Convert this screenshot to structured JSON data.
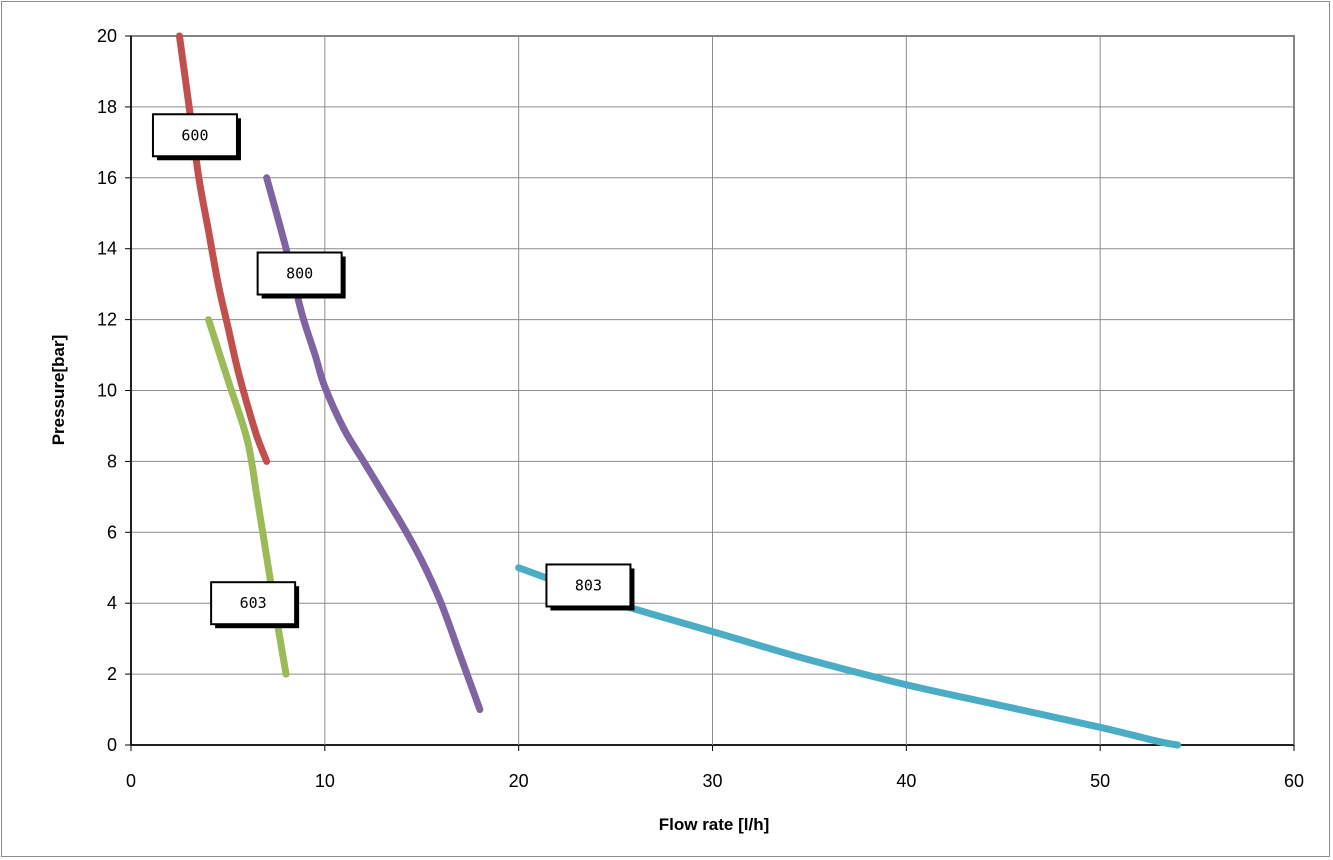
{
  "chart_data": {
    "type": "line",
    "title": "",
    "xlabel": "Flow rate [l/h]",
    "ylabel": "Pressure[bar]",
    "xlim": [
      0,
      60
    ],
    "ylim": [
      0,
      20
    ],
    "x_ticks": [
      0,
      10,
      20,
      30,
      40,
      50,
      60
    ],
    "y_ticks": [
      0,
      2,
      4,
      6,
      8,
      10,
      12,
      14,
      16,
      18,
      20
    ],
    "grid": true,
    "legend": "none",
    "series": [
      {
        "name": "600",
        "color": "#c0504d",
        "points": [
          [
            2.5,
            20
          ],
          [
            3,
            18
          ],
          [
            3.5,
            16
          ],
          [
            4,
            14.5
          ],
          [
            4.5,
            13
          ],
          [
            5,
            11.8
          ],
          [
            5.5,
            10.6
          ],
          [
            6,
            9.6
          ],
          [
            6.5,
            8.7
          ],
          [
            7,
            8
          ]
        ]
      },
      {
        "name": "800",
        "color": "#8064a2",
        "points": [
          [
            7,
            16
          ],
          [
            8,
            14
          ],
          [
            8.8,
            12.2
          ],
          [
            9.5,
            11
          ],
          [
            10,
            10.1
          ],
          [
            11,
            8.9
          ],
          [
            12,
            8
          ],
          [
            13,
            7.1
          ],
          [
            14,
            6.2
          ],
          [
            15,
            5.2
          ],
          [
            16,
            4
          ],
          [
            17,
            2.5
          ],
          [
            18,
            1
          ]
        ]
      },
      {
        "name": "603",
        "color": "#9bbb59",
        "points": [
          [
            4,
            12
          ],
          [
            5,
            10.3
          ],
          [
            6,
            8.6
          ],
          [
            6.5,
            7
          ],
          [
            7,
            5.3
          ],
          [
            7.5,
            3.6
          ],
          [
            8,
            2
          ]
        ]
      },
      {
        "name": "803",
        "color": "#4bacc6",
        "points": [
          [
            20,
            5
          ],
          [
            22,
            4.6
          ],
          [
            25,
            4
          ],
          [
            30,
            3.2
          ],
          [
            35,
            2.4
          ],
          [
            40,
            1.7
          ],
          [
            45,
            1.1
          ],
          [
            50,
            0.5
          ],
          [
            53,
            0.1
          ],
          [
            54,
            0
          ]
        ]
      }
    ],
    "annotations": [
      {
        "text": "600",
        "x": 3.3,
        "y": 17.2
      },
      {
        "text": "800",
        "x": 8.7,
        "y": 13.3
      },
      {
        "text": "603",
        "x": 6.3,
        "y": 4.0
      },
      {
        "text": "803",
        "x": 23.6,
        "y": 4.5
      }
    ]
  }
}
